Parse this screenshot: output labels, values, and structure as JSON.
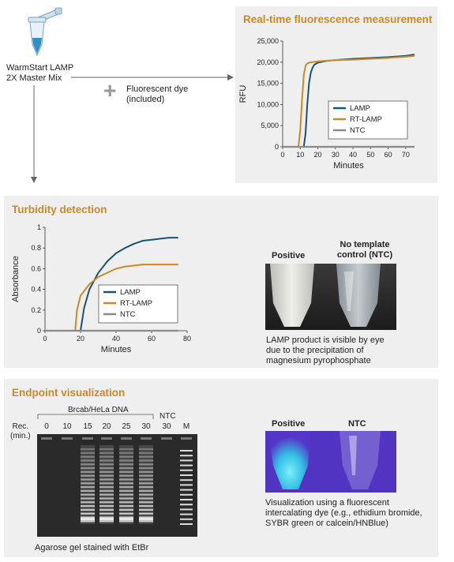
{
  "reagent": {
    "line1": "WarmStart LAMP",
    "line2": "2X Master Mix",
    "plus": "+",
    "dye_line1": "Fluorescent dye",
    "dye_line2": "(included)"
  },
  "realtime": {
    "title": "Real-time fluorescence measurement",
    "ylabel": "RFU",
    "xlabel": "Minutes",
    "yticks": [
      "0",
      "5,000",
      "10,000",
      "15,000",
      "20,000",
      "25,000"
    ],
    "xticks": [
      "0",
      "10",
      "20",
      "30",
      "40",
      "50",
      "60",
      "70"
    ],
    "legend": [
      "LAMP",
      "RT-LAMP",
      "NTC"
    ]
  },
  "turbidity": {
    "title": "Turbidity detection",
    "ylabel": "Absorbance",
    "xlabel": "Minutes",
    "yticks": [
      "0",
      "0.2",
      "0.4",
      "0.6",
      "0.8",
      "1"
    ],
    "xticks": [
      "0",
      "20",
      "40",
      "60",
      "80"
    ],
    "legend": [
      "LAMP",
      "RT-LAMP",
      "NTC"
    ],
    "photo_positive": "Positive",
    "photo_ntc_line1": "No template",
    "photo_ntc_line2": "control (NTC)",
    "caption_line1": "LAMP product is visible by eye",
    "caption_line2": "due to the precipitation of",
    "caption_line3": "magnesium pyrophosphate"
  },
  "endpoint": {
    "title": "Endpoint visualization",
    "dna_label": "Brcab/HeLa DNA",
    "ntc_label": "NTC",
    "rec_label_line1": "Rec.",
    "rec_label_line2": "(min.)",
    "lanes": [
      "0",
      "10",
      "15",
      "20",
      "25",
      "30",
      "30",
      "M"
    ],
    "gel_caption": "Agarose gel stained with EtBr",
    "uv_positive": "Positive",
    "uv_ntc": "NTC",
    "uv_caption_line1": "Visualization using a fluorescent",
    "uv_caption_line2": "intercalating dye (e.g., ethidium bromide,",
    "uv_caption_line3": "SYBR green or calcein/HNBlue)"
  },
  "colors": {
    "lamp": "#1a5273",
    "rt_lamp": "#c98a28",
    "ntc": "#8a8a8a",
    "accent": "#c98a28",
    "panel": "#efefef"
  },
  "chart_data": [
    {
      "type": "line",
      "title": "Real-time fluorescence measurement",
      "xlabel": "Minutes",
      "ylabel": "RFU",
      "xlim": [
        0,
        75
      ],
      "ylim": [
        0,
        25000
      ],
      "legend": "bottom-right",
      "series": [
        {
          "name": "LAMP",
          "x": [
            0,
            12,
            13,
            14,
            15,
            16,
            17,
            18,
            20,
            25,
            30,
            40,
            50,
            60,
            70,
            75
          ],
          "values": [
            0,
            0,
            3000,
            10000,
            15000,
            17500,
            18700,
            19400,
            19900,
            20300,
            20500,
            20800,
            21000,
            21200,
            21500,
            21800
          ]
        },
        {
          "name": "RT-LAMP",
          "x": [
            0,
            9,
            10,
            11,
            12,
            13,
            14,
            15,
            20,
            30,
            40,
            50,
            60,
            70,
            75
          ],
          "values": [
            0,
            0,
            4000,
            11000,
            17000,
            19200,
            19700,
            19900,
            20200,
            20500,
            20600,
            20800,
            21000,
            21300,
            21500
          ]
        },
        {
          "name": "NTC",
          "x": [
            0,
            75
          ],
          "values": [
            0,
            0
          ]
        }
      ]
    },
    {
      "type": "line",
      "title": "Turbidity detection",
      "xlabel": "Minutes",
      "ylabel": "Absorbance",
      "xlim": [
        0,
        80
      ],
      "ylim": [
        0,
        1
      ],
      "legend": "bottom-right",
      "series": [
        {
          "name": "LAMP",
          "x": [
            0,
            20,
            22,
            25,
            30,
            35,
            40,
            45,
            50,
            55,
            60,
            65,
            70,
            75
          ],
          "values": [
            0,
            0,
            0.22,
            0.4,
            0.56,
            0.67,
            0.75,
            0.8,
            0.84,
            0.87,
            0.88,
            0.89,
            0.9,
            0.9
          ]
        },
        {
          "name": "RT-LAMP",
          "x": [
            0,
            17,
            18,
            20,
            25,
            30,
            35,
            40,
            45,
            50,
            55,
            60,
            65,
            70,
            75
          ],
          "values": [
            0,
            0,
            0.2,
            0.34,
            0.45,
            0.52,
            0.56,
            0.6,
            0.62,
            0.63,
            0.64,
            0.64,
            0.64,
            0.64,
            0.64
          ]
        },
        {
          "name": "NTC",
          "x": [
            0,
            75
          ],
          "values": [
            0,
            0
          ]
        }
      ]
    }
  ]
}
